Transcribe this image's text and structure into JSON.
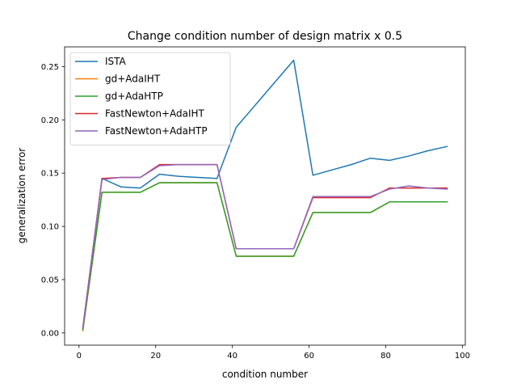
{
  "chart_data": {
    "type": "line",
    "title": "Change condition number of design matrix x 0.5",
    "xlabel": "condition number",
    "ylabel": "generalization error",
    "xlim": [
      -3.75,
      100.75
    ],
    "ylim": [
      -0.0115,
      0.2685
    ],
    "xticks": [
      0,
      20,
      40,
      60,
      80,
      100
    ],
    "xtick_labels": [
      "0",
      "20",
      "40",
      "60",
      "80",
      "100"
    ],
    "yticks": [
      0.0,
      0.05,
      0.1,
      0.15,
      0.2,
      0.25
    ],
    "ytick_labels": [
      "0.00",
      "0.05",
      "0.10",
      "0.15",
      "0.20",
      "0.25"
    ],
    "grid": false,
    "legend_position": "upper-left",
    "x": [
      1,
      6,
      11,
      16,
      21,
      26,
      31,
      36,
      41,
      46,
      51,
      56,
      61,
      66,
      71,
      76,
      81,
      86,
      91,
      96
    ],
    "series": [
      {
        "name": "ISTA",
        "color": "#1f77b4",
        "values": [
          0.004,
          0.145,
          0.137,
          0.136,
          0.149,
          0.147,
          0.146,
          0.145,
          0.193,
          0.214,
          0.235,
          0.256,
          0.148,
          0.153,
          0.158,
          0.164,
          0.162,
          0.166,
          0.171,
          0.175
        ]
      },
      {
        "name": "gd+AdaIHT",
        "color": "#ff7f0e",
        "values": [
          0.002,
          0.132,
          0.132,
          0.132,
          0.141,
          0.141,
          0.141,
          0.141,
          0.072,
          0.072,
          0.072,
          0.072,
          0.113,
          0.113,
          0.113,
          0.113,
          0.123,
          0.123,
          0.123,
          0.123
        ]
      },
      {
        "name": "gd+AdaHTP",
        "color": "#2ca02c",
        "values": [
          0.003,
          0.132,
          0.132,
          0.132,
          0.141,
          0.141,
          0.141,
          0.141,
          0.072,
          0.072,
          0.072,
          0.072,
          0.113,
          0.113,
          0.113,
          0.113,
          0.123,
          0.123,
          0.123,
          0.123
        ]
      },
      {
        "name": "FastNewton+AdaIHT",
        "color": "#d62728",
        "values": [
          0.005,
          0.145,
          0.146,
          0.146,
          0.158,
          0.158,
          0.158,
          0.158,
          0.079,
          0.079,
          0.079,
          0.079,
          0.127,
          0.127,
          0.127,
          0.127,
          0.136,
          0.136,
          0.136,
          0.136
        ]
      },
      {
        "name": "FastNewton+AdaHTP",
        "color": "#9467bd",
        "values": [
          0.005,
          0.144,
          0.146,
          0.146,
          0.157,
          0.158,
          0.158,
          0.158,
          0.079,
          0.079,
          0.079,
          0.079,
          0.128,
          0.128,
          0.128,
          0.128,
          0.135,
          0.138,
          0.136,
          0.135
        ]
      }
    ]
  }
}
